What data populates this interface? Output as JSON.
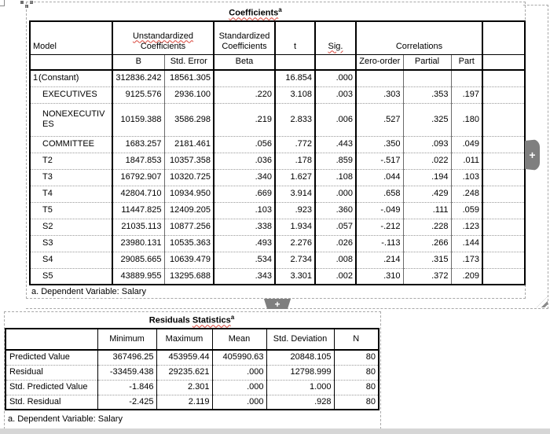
{
  "coefficients_table": {
    "title": "Coefficients",
    "title_sup": "a",
    "headers": {
      "model": "Model",
      "unstandardized_line1": "Unstandardized",
      "unstandardized_line2": "Coefficients",
      "standardized_line1": "Standardized",
      "standardized_line2": "Coefficients",
      "t": "t",
      "sig": "Sig.",
      "correlations": "Correlations",
      "b": "B",
      "std_error": "Std. Error",
      "beta": "Beta",
      "zero_order": "Zero-order",
      "partial": "Partial",
      "part": "Part"
    },
    "model_number": "1",
    "rows": [
      {
        "label": "(Constant)",
        "b": "312836.242",
        "std_error": "18561.305",
        "beta": "",
        "t": "16.854",
        "sig": ".000",
        "zero_order": "",
        "partial": "",
        "part": ""
      },
      {
        "label": "EXECUTIVES",
        "b": "9125.576",
        "std_error": "2936.100",
        "beta": ".220",
        "t": "3.108",
        "sig": ".003",
        "zero_order": ".303",
        "partial": ".353",
        "part": ".197"
      },
      {
        "label": "NONEXECUTIVES",
        "b": "10159.388",
        "std_error": "3586.298",
        "beta": ".219",
        "t": "2.833",
        "sig": ".006",
        "zero_order": ".527",
        "partial": ".325",
        "part": ".180"
      },
      {
        "label": "COMMITTEE",
        "b": "1683.257",
        "std_error": "2181.461",
        "beta": ".056",
        "t": ".772",
        "sig": ".443",
        "zero_order": ".350",
        "partial": ".093",
        "part": ".049"
      },
      {
        "label": "T2",
        "b": "1847.853",
        "std_error": "10357.358",
        "beta": ".036",
        "t": ".178",
        "sig": ".859",
        "zero_order": "-.517",
        "partial": ".022",
        "part": ".011"
      },
      {
        "label": "T3",
        "b": "16792.907",
        "std_error": "10320.725",
        "beta": ".340",
        "t": "1.627",
        "sig": ".108",
        "zero_order": ".044",
        "partial": ".194",
        "part": ".103"
      },
      {
        "label": "T4",
        "b": "42804.710",
        "std_error": "10934.950",
        "beta": ".669",
        "t": "3.914",
        "sig": ".000",
        "zero_order": ".658",
        "partial": ".429",
        "part": ".248"
      },
      {
        "label": "T5",
        "b": "11447.825",
        "std_error": "12409.205",
        "beta": ".103",
        "t": ".923",
        "sig": ".360",
        "zero_order": "-.049",
        "partial": ".111",
        "part": ".059"
      },
      {
        "label": "S2",
        "b": "21035.113",
        "std_error": "10877.256",
        "beta": ".338",
        "t": "1.934",
        "sig": ".057",
        "zero_order": "-.212",
        "partial": ".228",
        "part": ".123"
      },
      {
        "label": "S3",
        "b": "23980.131",
        "std_error": "10535.363",
        "beta": ".493",
        "t": "2.276",
        "sig": ".026",
        "zero_order": "-.113",
        "partial": ".266",
        "part": ".144"
      },
      {
        "label": "S4",
        "b": "29085.665",
        "std_error": "10639.479",
        "beta": ".534",
        "t": "2.734",
        "sig": ".008",
        "zero_order": ".214",
        "partial": ".315",
        "part": ".173"
      },
      {
        "label": "S5",
        "b": "43889.955",
        "std_error": "13295.688",
        "beta": ".343",
        "t": "3.301",
        "sig": ".002",
        "zero_order": ".310",
        "partial": ".372",
        "part": ".209"
      }
    ],
    "footnote": "a. Dependent Variable: Salary"
  },
  "residuals_table": {
    "title_part1": "Residuals",
    "title_part2": "Statistics",
    "title_sup": "a",
    "headers": {
      "minimum": "Minimum",
      "maximum": "Maximum",
      "mean": "Mean",
      "std_deviation": "Std. Deviation",
      "n": "N"
    },
    "rows": [
      {
        "label": "Predicted Value",
        "min": "367496.25",
        "max": "453959.44",
        "mean": "405990.63",
        "sd": "20848.105",
        "n": "80"
      },
      {
        "label": "Residual",
        "min": "-33459.438",
        "max": "29235.621",
        "mean": ".000",
        "sd": "12798.999",
        "n": "80"
      },
      {
        "label": "Std. Predicted Value",
        "min": "-1.846",
        "max": "2.301",
        "mean": ".000",
        "sd": "1.000",
        "n": "80"
      },
      {
        "label": "Std. Residual",
        "min": "-2.425",
        "max": "2.119",
        "mean": ".000",
        "sd": ".928",
        "n": "80"
      }
    ],
    "footnote": "a. Dependent Variable: Salary"
  },
  "controls": {
    "plus": "+"
  },
  "colors": {
    "squiggle_red": "#d9453a",
    "selection_dash_gray": "#a8a8a8",
    "handle_gray": "#7f7f7f",
    "bottom_strip_gray": "#d6d6d6"
  }
}
